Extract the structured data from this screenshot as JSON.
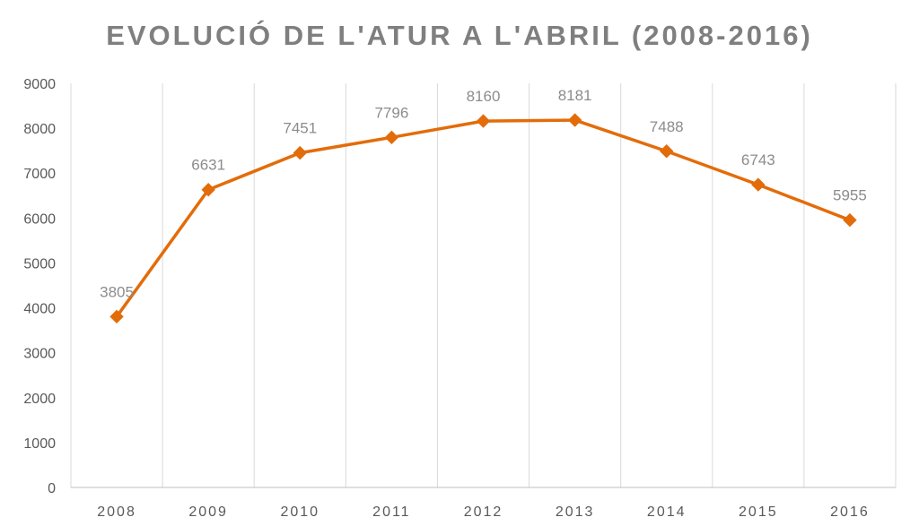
{
  "chart_data": {
    "type": "line",
    "title": "EVOLUCIÓ DE L'ATUR A L'ABRIL (2008-2016)",
    "categories": [
      "2008",
      "2009",
      "2010",
      "2011",
      "2012",
      "2013",
      "2014",
      "2015",
      "2016"
    ],
    "series": [
      {
        "values": [
          3805,
          6631,
          7451,
          7796,
          8160,
          8181,
          7488,
          6743,
          5955
        ],
        "color": "#E36C0A",
        "marker": "diamond"
      }
    ],
    "data_labels": [
      "3805",
      "6631",
      "7451",
      "7796",
      "8160",
      "8181",
      "7488",
      "6743",
      "5955"
    ],
    "ylim": [
      0,
      9000
    ],
    "yticks": [
      "0",
      "1000",
      "2000",
      "3000",
      "4000",
      "5000",
      "6000",
      "7000",
      "8000",
      "9000"
    ],
    "grid": "vertical",
    "legend": "none"
  }
}
